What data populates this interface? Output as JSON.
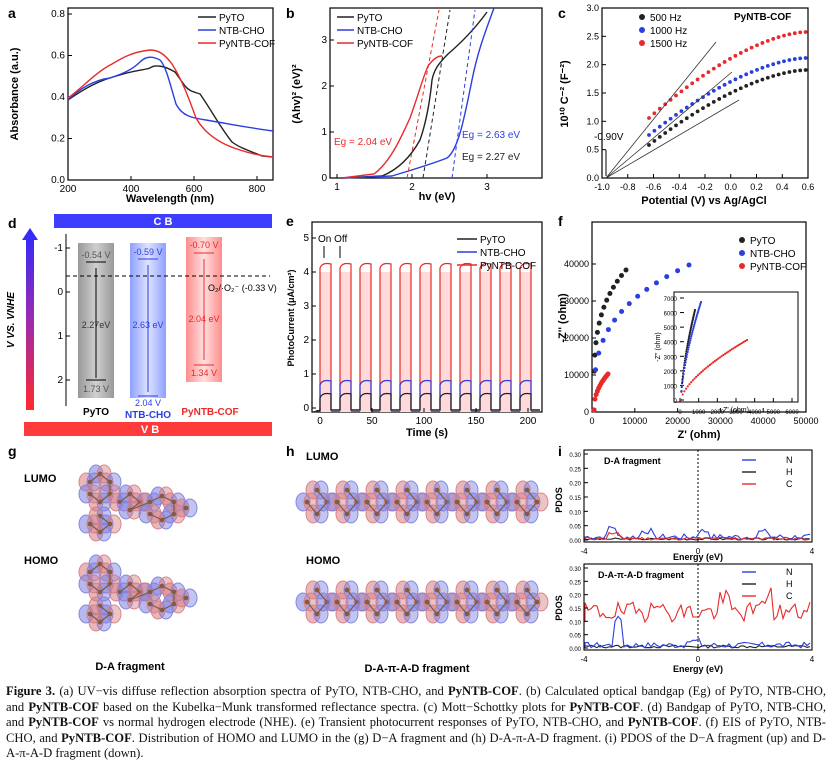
{
  "figure": {
    "panels": {
      "a": {
        "label": "a",
        "xlabel": "Wavelength (nm)",
        "ylabel": "Absorbance (a.u.)",
        "xticks": [
          "200",
          "400",
          "600",
          "800"
        ],
        "yticks": [
          "0.0",
          "0.2",
          "0.4",
          "0.6",
          "0.8"
        ],
        "legend": [
          "PyTO",
          "NTB-CHO",
          "PyNTB-COF"
        ]
      },
      "b": {
        "label": "b",
        "xlabel": "hv (eV)",
        "ylabel": "(Ahv)² (eV)²",
        "xticks": [
          "1",
          "2",
          "3"
        ],
        "yticks": [
          "0",
          "1",
          "2",
          "3"
        ],
        "legend": [
          "PyTO",
          "NTB-CHO",
          "PyNTB-COF"
        ],
        "ann_cof": "Eg = 2.04 eV",
        "ann_ntb": "Eg = 2.63 eV",
        "ann_pyto": "Eg = 2.27 eV"
      },
      "c": {
        "label": "c",
        "title": "PyNTB-COF",
        "xlabel": "Potential (V) vs Ag/AgCl",
        "ylabel": "10¹⁰ C⁻² (F⁻²)",
        "xticks": [
          "-1.0",
          "-0.8",
          "-0.6",
          "-0.4",
          "-0.2",
          "0.0",
          "0.2",
          "0.4",
          "0.6"
        ],
        "yticks": [
          "0.0",
          "0.5",
          "1.0",
          "1.5",
          "2.0",
          "2.5",
          "3.0"
        ],
        "legend": [
          "500 Hz",
          "1000 Hz",
          "1500 Hz"
        ],
        "annotation": "-0.90V"
      },
      "d": {
        "label": "d",
        "cb": "C B",
        "vb": "V B",
        "ylabel": "V VS. VNHE",
        "yticks": [
          "-1",
          "0",
          "1",
          "2"
        ],
        "o2_label": "O₂/·O₂⁻  (-0.33 V)",
        "bars": [
          {
            "name": "PyTO",
            "cb": "-0.54 V",
            "gap": "2.27eV",
            "vb": "1.73 V"
          },
          {
            "name": "NTB-CHO",
            "cb": "-0.59 V",
            "gap": "2.63 eV",
            "vb": "2.04 V"
          },
          {
            "name": "PyNTB-COF",
            "cb": "-0.70 V",
            "gap": "2.04 eV",
            "vb": "1.34 V"
          }
        ]
      },
      "e": {
        "label": "e",
        "xlabel": "Time (s)",
        "ylabel": "PhotoCurrent (μA/cm²)",
        "xticks": [
          "0",
          "50",
          "100",
          "150",
          "200"
        ],
        "yticks": [
          "0",
          "1",
          "2",
          "3",
          "4",
          "5"
        ],
        "legend": [
          "PyTO",
          "NTB-CHO",
          "PyNTB-COF"
        ],
        "onoff": "On Off"
      },
      "f": {
        "label": "f",
        "xlabel": "Z' (ohm)",
        "ylabel": "-Z'' (ohm)",
        "xticks": [
          "0",
          "10000",
          "20000",
          "30000",
          "40000",
          "50000"
        ],
        "yticks": [
          "0",
          "10000",
          "20000",
          "30000",
          "40000"
        ],
        "legend": [
          "PyTO",
          "NTB-CHO",
          "PyNTB-COF"
        ],
        "inset_xlabel": "Z' (ohm)",
        "inset_ylabel": "-Z'' (ohm)",
        "inset_xticks": [
          "0",
          "1000",
          "2000",
          "3000",
          "4000",
          "5000",
          "6000"
        ],
        "inset_yticks": [
          "0",
          "1000",
          "2000",
          "3000",
          "4000",
          "5000",
          "6000",
          "7000"
        ]
      },
      "g": {
        "label": "g",
        "lumo": "LUMO",
        "homo": "HOMO",
        "name": "D-A fragment"
      },
      "h": {
        "label": "h",
        "lumo": "LUMO",
        "homo": "HOMO",
        "name": "D-A-π-A-D fragment"
      },
      "i": {
        "label": "i",
        "top_title": "D-A fragment",
        "bottom_title": "D-A-π-A-D fragment",
        "xlabel": "Energy (eV)",
        "ylabel": "PDOS",
        "xticks": [
          "-4",
          "0",
          "4"
        ],
        "top_yticks": [
          "0.00",
          "0.05",
          "0.10",
          "0.15",
          "0.20",
          "0.25",
          "0.30"
        ],
        "bottom_yticks": [
          "0.00",
          "0.05",
          "0.10",
          "0.15",
          "0.20",
          "0.25",
          "0.30"
        ],
        "legend": [
          "N",
          "H",
          "C"
        ]
      }
    },
    "colors": {
      "pyto": "#222222",
      "ntb": "#2b3fe0",
      "cof": "#e82a2a"
    },
    "caption_parts": [
      {
        "t": "Figure 3.",
        "b": true
      },
      {
        "t": " (a) UV−vis diffuse reflection absorption spectra of PyTO, NTB-CHO, and ",
        "b": false
      },
      {
        "t": "PyNTB-COF",
        "b": true
      },
      {
        "t": ". (b) Calculated optical bandgap (Eg) of PyTO, NTB-CHO, and ",
        "b": false
      },
      {
        "t": "PyNTB-COF",
        "b": true
      },
      {
        "t": " based on the Kubelka−Munk transformed reflectance spectra. (c) Mott−Schottky plots for ",
        "b": false
      },
      {
        "t": "PyNTB-COF",
        "b": true
      },
      {
        "t": ". (d) Bandgap of PyTO, NTB-CHO, and ",
        "b": false
      },
      {
        "t": "PyNTB-COF",
        "b": true
      },
      {
        "t": " vs normal hydrogen electrode (NHE). (e) Transient photocurrent responses of PyTO, NTB-CHO, and ",
        "b": false
      },
      {
        "t": "PyNTB-COF",
        "b": true
      },
      {
        "t": ". (f) EIS of PyTO, NTB-CHO, and ",
        "b": false
      },
      {
        "t": "PyNTB-COF",
        "b": true
      },
      {
        "t": ". Distribution of HOMO and LUMO in the (g) D−A fragment and (h) D-A-π-A-D fragment. (i) PDOS of the D−A fragment (up) and D-A-π-A-D fragment (down).",
        "b": false
      }
    ]
  }
}
